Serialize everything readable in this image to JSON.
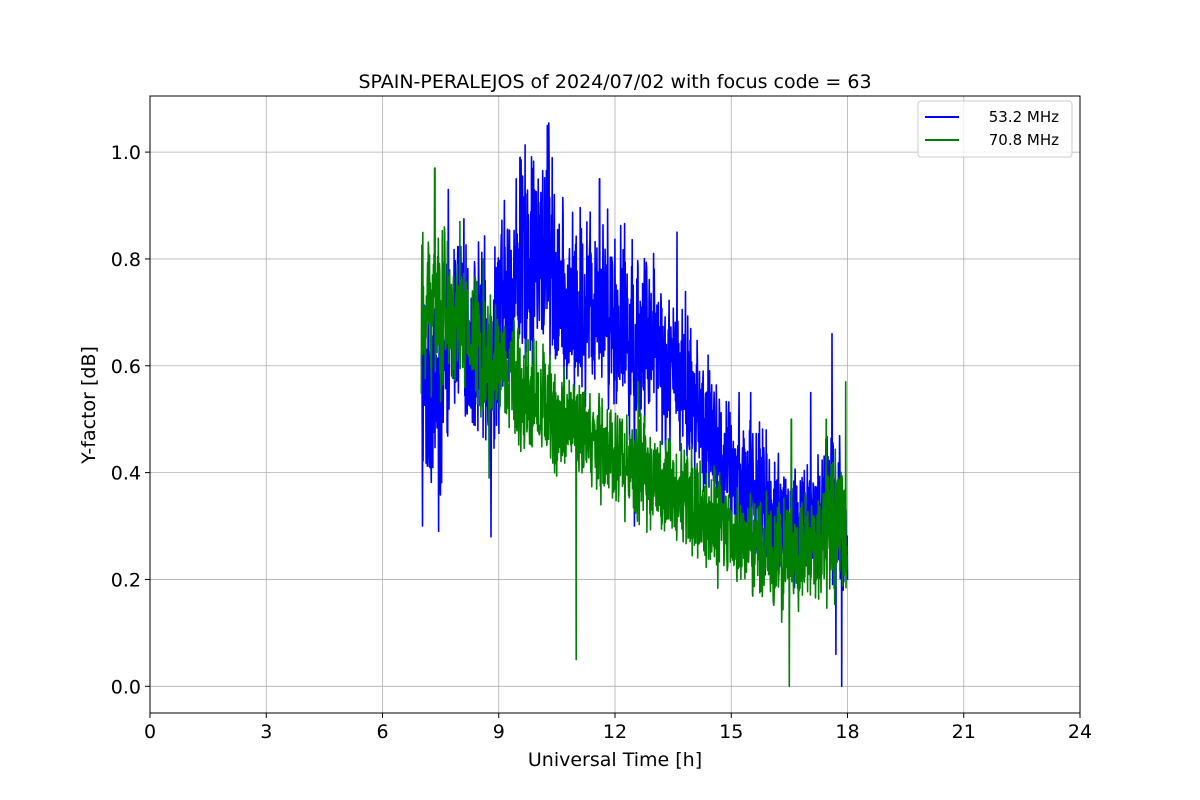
{
  "chart_data": {
    "type": "line",
    "title": "SPAIN-PERALEJOS of 2024/07/02 with focus code = 63",
    "xlabel": "Universal Time [h]",
    "ylabel": "Y-factor [dB]",
    "xlim": [
      0,
      24
    ],
    "ylim": [
      -0.05,
      1.105
    ],
    "xticks": [
      0,
      3,
      6,
      9,
      12,
      15,
      18,
      21,
      24
    ],
    "xtick_labels": [
      "0",
      "3",
      "6",
      "9",
      "12",
      "15",
      "18",
      "21",
      "24"
    ],
    "yticks": [
      0.0,
      0.2,
      0.4,
      0.6,
      0.8,
      1.0
    ],
    "ytick_labels": [
      "0.0",
      "0.2",
      "0.4",
      "0.6",
      "0.8",
      "1.0"
    ],
    "grid": true,
    "legend_position": "top-right",
    "series": [
      {
        "name": "53.2 MHz",
        "color": "#0000ff",
        "x": [
          7.0,
          7.25,
          7.5,
          7.75,
          8.0,
          8.25,
          8.5,
          8.75,
          9.0,
          9.25,
          9.5,
          9.75,
          10.0,
          10.25,
          10.5,
          10.75,
          11.0,
          11.25,
          11.5,
          11.75,
          12.0,
          12.25,
          12.5,
          12.75,
          13.0,
          13.25,
          13.5,
          13.75,
          14.0,
          14.25,
          14.5,
          14.75,
          15.0,
          15.25,
          15.5,
          15.75,
          16.0,
          16.25,
          16.5,
          16.75,
          17.0,
          17.25,
          17.5,
          17.75,
          18.0
        ],
        "y": [
          0.55,
          0.6,
          0.52,
          0.65,
          0.72,
          0.62,
          0.65,
          0.6,
          0.68,
          0.72,
          0.78,
          0.82,
          0.78,
          0.84,
          0.74,
          0.7,
          0.7,
          0.72,
          0.74,
          0.72,
          0.7,
          0.68,
          0.66,
          0.65,
          0.68,
          0.6,
          0.58,
          0.6,
          0.52,
          0.5,
          0.46,
          0.42,
          0.4,
          0.38,
          0.38,
          0.36,
          0.33,
          0.32,
          0.3,
          0.3,
          0.32,
          0.3,
          0.35,
          0.3,
          0.28
        ],
        "spread": [
          0.22,
          0.26,
          0.22,
          0.18,
          0.22,
          0.18,
          0.22,
          0.22,
          0.26,
          0.22,
          0.22,
          0.24,
          0.26,
          0.26,
          0.22,
          0.2,
          0.22,
          0.22,
          0.2,
          0.2,
          0.22,
          0.22,
          0.22,
          0.2,
          0.2,
          0.18,
          0.16,
          0.2,
          0.16,
          0.16,
          0.16,
          0.14,
          0.16,
          0.16,
          0.16,
          0.14,
          0.14,
          0.14,
          0.14,
          0.16,
          0.14,
          0.16,
          0.18,
          0.2,
          0.14
        ],
        "peaks": [
          [
            7.03,
            0.3
          ],
          [
            7.45,
            0.29
          ],
          [
            7.7,
            0.93
          ],
          [
            8.8,
            0.28
          ],
          [
            9.45,
            0.95
          ],
          [
            9.55,
            0.99
          ],
          [
            10.25,
            1.05
          ],
          [
            10.5,
            0.62
          ],
          [
            11.6,
            0.95
          ],
          [
            12.1,
            0.58
          ],
          [
            12.5,
            0.9
          ],
          [
            12.5,
            0.3
          ],
          [
            13.0,
            0.55
          ],
          [
            13.6,
            0.85
          ],
          [
            14.4,
            0.62
          ],
          [
            15.2,
            0.55
          ],
          [
            15.5,
            0.55
          ],
          [
            15.9,
            0.48
          ],
          [
            17.05,
            0.55
          ],
          [
            17.6,
            0.66
          ],
          [
            17.7,
            0.06
          ],
          [
            17.85,
            0.0
          ]
        ]
      },
      {
        "name": "70.8 MHz",
        "color": "#008000",
        "x": [
          7.0,
          7.25,
          7.5,
          7.75,
          8.0,
          8.25,
          8.5,
          8.75,
          9.0,
          9.25,
          9.5,
          9.75,
          10.0,
          10.25,
          10.5,
          10.75,
          11.0,
          11.25,
          11.5,
          11.75,
          12.0,
          12.25,
          12.5,
          12.75,
          13.0,
          13.25,
          13.5,
          13.75,
          14.0,
          14.25,
          14.5,
          14.75,
          15.0,
          15.25,
          15.5,
          15.75,
          16.0,
          16.25,
          16.5,
          16.75,
          17.0,
          17.25,
          17.5,
          17.75,
          18.0
        ],
        "y": [
          0.68,
          0.72,
          0.7,
          0.68,
          0.68,
          0.66,
          0.64,
          0.62,
          0.6,
          0.58,
          0.56,
          0.55,
          0.54,
          0.52,
          0.5,
          0.5,
          0.48,
          0.46,
          0.46,
          0.44,
          0.44,
          0.42,
          0.4,
          0.4,
          0.4,
          0.38,
          0.36,
          0.35,
          0.34,
          0.32,
          0.3,
          0.29,
          0.28,
          0.28,
          0.27,
          0.26,
          0.26,
          0.25,
          0.25,
          0.24,
          0.26,
          0.27,
          0.28,
          0.3,
          0.3
        ],
        "spread": [
          0.18,
          0.2,
          0.2,
          0.14,
          0.14,
          0.14,
          0.14,
          0.14,
          0.13,
          0.13,
          0.13,
          0.13,
          0.13,
          0.13,
          0.12,
          0.12,
          0.12,
          0.12,
          0.12,
          0.12,
          0.12,
          0.12,
          0.12,
          0.12,
          0.12,
          0.12,
          0.12,
          0.12,
          0.12,
          0.12,
          0.12,
          0.12,
          0.12,
          0.12,
          0.12,
          0.12,
          0.12,
          0.12,
          0.12,
          0.12,
          0.12,
          0.12,
          0.14,
          0.16,
          0.14
        ],
        "peaks": [
          [
            7.35,
            0.97
          ],
          [
            7.6,
            0.86
          ],
          [
            8.0,
            0.87
          ],
          [
            8.6,
            0.8
          ],
          [
            8.75,
            0.39
          ],
          [
            11.0,
            0.05
          ],
          [
            12.6,
            0.57
          ],
          [
            16.3,
            0.12
          ],
          [
            16.5,
            0.0
          ],
          [
            16.55,
            0.5
          ],
          [
            17.45,
            0.5
          ],
          [
            17.95,
            0.57
          ]
        ]
      }
    ]
  }
}
